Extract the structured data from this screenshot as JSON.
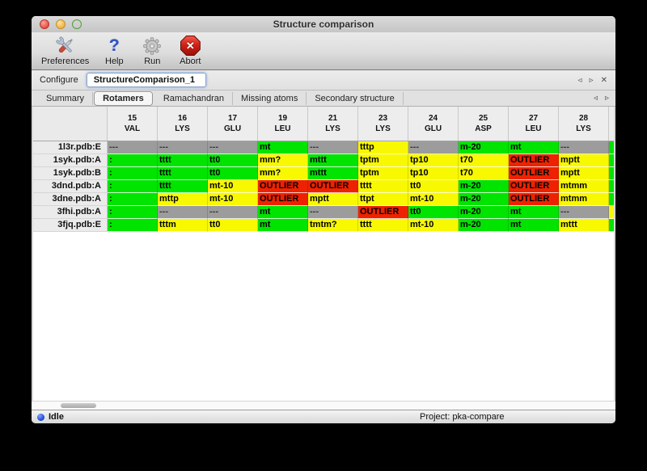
{
  "window": {
    "title": "Structure comparison"
  },
  "toolbar": {
    "items": [
      {
        "label": "Preferences",
        "icon": "preferences-tools-icon"
      },
      {
        "label": "Help",
        "icon": "help-question-icon",
        "glyph": "?"
      },
      {
        "label": "Run",
        "icon": "run-gear-icon"
      },
      {
        "label": "Abort",
        "icon": "abort-stop-icon",
        "glyph": "✕"
      }
    ]
  },
  "configure": {
    "label": "Configure",
    "field_value": "StructureComparison_1",
    "nav": {
      "prev": "◃",
      "next": "▹",
      "close": "✕"
    }
  },
  "tabs": {
    "items": [
      {
        "label": "Summary",
        "selected": false
      },
      {
        "label": "Rotamers",
        "selected": true
      },
      {
        "label": "Ramachandran",
        "selected": false
      },
      {
        "label": "Missing atoms",
        "selected": false
      },
      {
        "label": "Secondary structure",
        "selected": false
      }
    ],
    "nav": {
      "prev": "◃",
      "next": "▹"
    }
  },
  "rotamer_table": {
    "columns": [
      {
        "num": "15",
        "res": "VAL"
      },
      {
        "num": "16",
        "res": "LYS"
      },
      {
        "num": "17",
        "res": "GLU"
      },
      {
        "num": "19",
        "res": "LEU"
      },
      {
        "num": "21",
        "res": "LYS"
      },
      {
        "num": "23",
        "res": "LYS"
      },
      {
        "num": "24",
        "res": "GLU"
      },
      {
        "num": "25",
        "res": "ASP"
      },
      {
        "num": "27",
        "res": "LEU"
      },
      {
        "num": "28",
        "res": "LYS"
      }
    ],
    "rows": [
      {
        "label": "1l3r.pdb:E",
        "partial": "g",
        "cells": [
          {
            "t": "---",
            "c": "x"
          },
          {
            "t": "---",
            "c": "x"
          },
          {
            "t": "---",
            "c": "x"
          },
          {
            "t": "mt",
            "c": "g"
          },
          {
            "t": "---",
            "c": "x"
          },
          {
            "t": "tttp",
            "c": "y"
          },
          {
            "t": "---",
            "c": "x"
          },
          {
            "t": "m-20",
            "c": "g"
          },
          {
            "t": "mt",
            "c": "g"
          },
          {
            "t": "---",
            "c": "x"
          }
        ]
      },
      {
        "label": "1syk.pdb:A",
        "partial": "g",
        "cells": [
          {
            "t": ":",
            "c": "g"
          },
          {
            "t": "tttt",
            "c": "g"
          },
          {
            "t": "tt0",
            "c": "g"
          },
          {
            "t": "mm?",
            "c": "y"
          },
          {
            "t": "mttt",
            "c": "g"
          },
          {
            "t": "tptm",
            "c": "y"
          },
          {
            "t": "tp10",
            "c": "y"
          },
          {
            "t": "t70",
            "c": "y"
          },
          {
            "t": "OUTLIER",
            "c": "r"
          },
          {
            "t": "mptt",
            "c": "y"
          }
        ]
      },
      {
        "label": "1syk.pdb:B",
        "partial": "g",
        "cells": [
          {
            "t": ":",
            "c": "g"
          },
          {
            "t": "tttt",
            "c": "g"
          },
          {
            "t": "tt0",
            "c": "g"
          },
          {
            "t": "mm?",
            "c": "y"
          },
          {
            "t": "mttt",
            "c": "g"
          },
          {
            "t": "tptm",
            "c": "y"
          },
          {
            "t": "tp10",
            "c": "y"
          },
          {
            "t": "t70",
            "c": "y"
          },
          {
            "t": "OUTLIER",
            "c": "r"
          },
          {
            "t": "mptt",
            "c": "y"
          }
        ]
      },
      {
        "label": "3dnd.pdb:A",
        "partial": "g",
        "cells": [
          {
            "t": ":",
            "c": "g"
          },
          {
            "t": "tttt",
            "c": "g"
          },
          {
            "t": "mt-10",
            "c": "y"
          },
          {
            "t": "OUTLIER",
            "c": "r"
          },
          {
            "t": "OUTLIER",
            "c": "r"
          },
          {
            "t": "tttt",
            "c": "y"
          },
          {
            "t": "tt0",
            "c": "y"
          },
          {
            "t": "m-20",
            "c": "g"
          },
          {
            "t": "OUTLIER",
            "c": "r"
          },
          {
            "t": "mtmm",
            "c": "y"
          }
        ]
      },
      {
        "label": "3dne.pdb:A",
        "partial": "g",
        "cells": [
          {
            "t": ":",
            "c": "g"
          },
          {
            "t": "mttp",
            "c": "y"
          },
          {
            "t": "mt-10",
            "c": "y"
          },
          {
            "t": "OUTLIER",
            "c": "r"
          },
          {
            "t": "mptt",
            "c": "y"
          },
          {
            "t": "ttpt",
            "c": "y"
          },
          {
            "t": "mt-10",
            "c": "y"
          },
          {
            "t": "m-20",
            "c": "g"
          },
          {
            "t": "OUTLIER",
            "c": "r"
          },
          {
            "t": "mtmm",
            "c": "y"
          }
        ]
      },
      {
        "label": "3fhi.pdb:A",
        "partial": "y",
        "cells": [
          {
            "t": ":",
            "c": "g"
          },
          {
            "t": "---",
            "c": "x"
          },
          {
            "t": "---",
            "c": "x"
          },
          {
            "t": "mt",
            "c": "g"
          },
          {
            "t": "---",
            "c": "x"
          },
          {
            "t": "OUTLIER",
            "c": "r"
          },
          {
            "t": "tt0",
            "c": "g"
          },
          {
            "t": "m-20",
            "c": "g"
          },
          {
            "t": "mt",
            "c": "g"
          },
          {
            "t": "---",
            "c": "x"
          }
        ]
      },
      {
        "label": "3fjq.pdb:E",
        "partial": "g",
        "cells": [
          {
            "t": ":",
            "c": "g"
          },
          {
            "t": "tttm",
            "c": "y"
          },
          {
            "t": "tt0",
            "c": "y"
          },
          {
            "t": "mt",
            "c": "g"
          },
          {
            "t": "tmtm?",
            "c": "y"
          },
          {
            "t": "tttt",
            "c": "y"
          },
          {
            "t": "mt-10",
            "c": "y"
          },
          {
            "t": "m-20",
            "c": "g"
          },
          {
            "t": "mt",
            "c": "g"
          },
          {
            "t": "mttt",
            "c": "y"
          }
        ]
      }
    ]
  },
  "statusbar": {
    "state_label": "Idle",
    "project_label": "Project: pka-compare"
  },
  "colors": {
    "cell_green": "#00e400",
    "cell_yellow": "#f8f800",
    "cell_red": "#ee2200",
    "cell_gray": "#9c9c9c",
    "status_dot_blue": "#1f46d6"
  }
}
